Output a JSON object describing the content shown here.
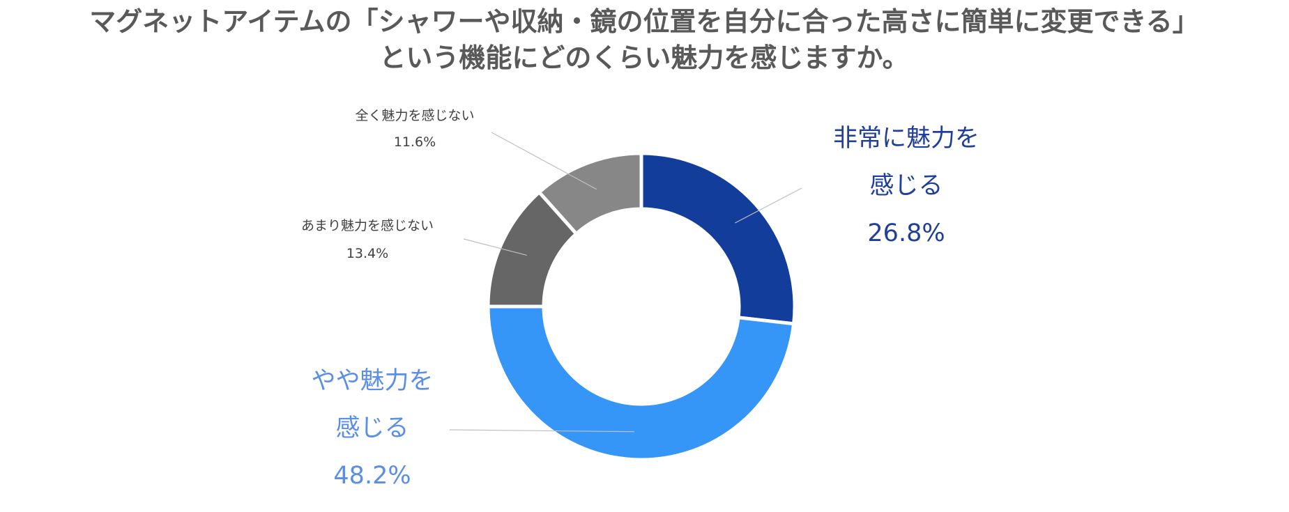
{
  "chart_data": {
    "type": "pie",
    "title": "マグネットアイテムの「シャワーや収納・鏡の位置を自分に合った高さに簡単に変更できる」",
    "subtitle": "という機能にどのくらい魅力を感じますか。",
    "donut": true,
    "slices": [
      {
        "label_lines": [
          "非常に魅力を",
          "感じる"
        ],
        "value": 26.8,
        "value_text": "26.8%",
        "color": "#123d9a",
        "label_color": "#1f3f99"
      },
      {
        "label_lines": [
          "やや魅力を",
          "感じる"
        ],
        "value": 48.2,
        "value_text": "48.2%",
        "color": "#3596f7",
        "label_color": "#5b8ee6"
      },
      {
        "label_lines": [
          "あまり魅力を感じない"
        ],
        "value": 13.4,
        "value_text": "13.4%",
        "color": "#666666",
        "label_color": "#404040"
      },
      {
        "label_lines": [
          "全く魅力を感じない"
        ],
        "value": 11.6,
        "value_text": "11.6%",
        "color": "#878787",
        "label_color": "#404040"
      }
    ]
  }
}
